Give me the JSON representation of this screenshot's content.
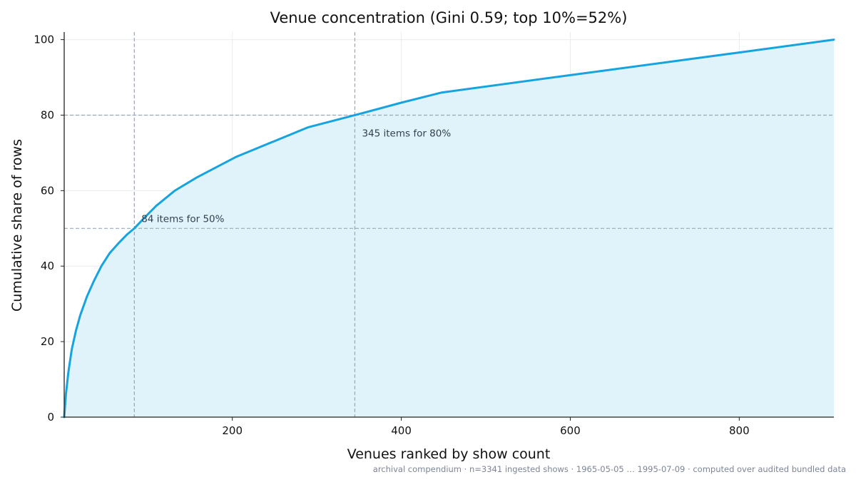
{
  "chart_data": {
    "type": "area",
    "title": "Venue concentration (Gini 0.59; top 10%=52%)",
    "xlabel": "Venues ranked by show count",
    "ylabel": "Cumulative share of rows",
    "xlim": [
      1,
      912
    ],
    "ylim": [
      0,
      102
    ],
    "x_ticks": [
      200,
      400,
      600,
      800
    ],
    "y_ticks": [
      0,
      20,
      40,
      60,
      80,
      100
    ],
    "grid": true,
    "line_color": "#17a3e0",
    "fill_color": "#e0f3fa",
    "reference_color": "#9ba6b6",
    "x": [
      1,
      3,
      6,
      10,
      15,
      20,
      28,
      36,
      45,
      55,
      65,
      75,
      84,
      95,
      110,
      132,
      158,
      205,
      290,
      345,
      400,
      448,
      600,
      800,
      912
    ],
    "values": [
      0,
      6,
      12,
      18,
      23,
      27,
      32,
      36,
      40,
      43.5,
      46,
      48.3,
      50,
      52.6,
      56,
      60,
      63.5,
      69,
      76.8,
      80,
      83.3,
      86,
      90.6,
      96.6,
      100
    ],
    "reference_lines": [
      {
        "axis": "y",
        "value": 50
      },
      {
        "axis": "y",
        "value": 80
      },
      {
        "axis": "x",
        "value": 84
      },
      {
        "axis": "x",
        "value": 345
      }
    ],
    "annotations": [
      {
        "text": "84 items for 50%",
        "x": 84,
        "y": 50
      },
      {
        "text": "345 items for 80%",
        "x": 345,
        "y": 80
      }
    ]
  },
  "caption": "archival compendium · n=3341 ingested shows · 1965-05-05 … 1995-07-09 · computed over audited bundled data"
}
